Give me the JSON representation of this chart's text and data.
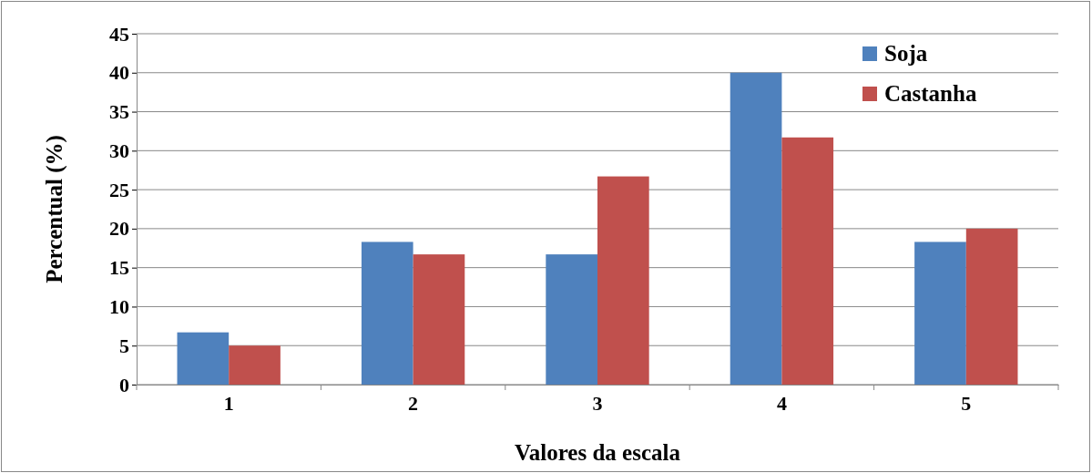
{
  "chart_data": {
    "type": "bar",
    "xlabel": "Valores da escala",
    "ylabel": "Percentual (%)",
    "categories": [
      "1",
      "2",
      "3",
      "4",
      "5"
    ],
    "series": [
      {
        "name": "Soja",
        "color": "#4f81bd",
        "values": [
          6.7,
          18.3,
          16.7,
          40,
          18.3
        ]
      },
      {
        "name": "Castanha",
        "color": "#c0504d",
        "values": [
          5,
          16.7,
          26.7,
          31.7,
          20
        ]
      }
    ],
    "ylim": [
      0,
      45
    ],
    "yticks": [
      0,
      5,
      10,
      15,
      20,
      25,
      30,
      35,
      40,
      45
    ],
    "grid": "y",
    "legend": "top right"
  }
}
